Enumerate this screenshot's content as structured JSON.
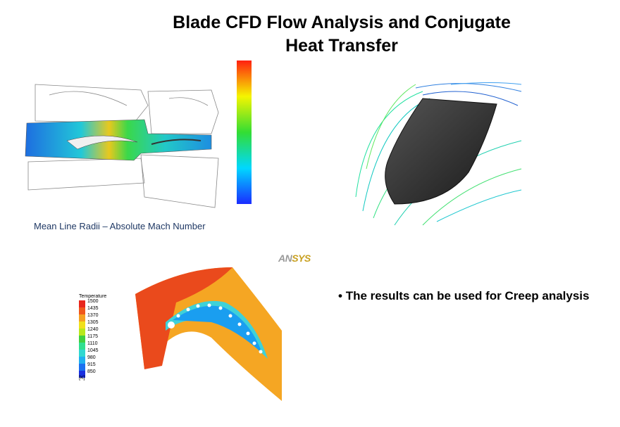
{
  "title_lines": [
    "Blade CFD Flow Analysis and Conjugate",
    "Heat Transfer"
  ],
  "mach_figure": {
    "caption": "Mean Line Radii – Absolute Mach Number"
  },
  "logo": {
    "prefix": "AN",
    "suffix": "SYS"
  },
  "temperature_figure": {
    "legend_title": "Temperature",
    "levels": [
      "1500",
      "1435",
      "1370",
      "1305",
      "1240",
      "1175",
      "1110",
      "1045",
      "980",
      "915",
      "850"
    ],
    "unit": "[K]"
  },
  "bullets": [
    "The results can be used for Creep analysis"
  ]
}
